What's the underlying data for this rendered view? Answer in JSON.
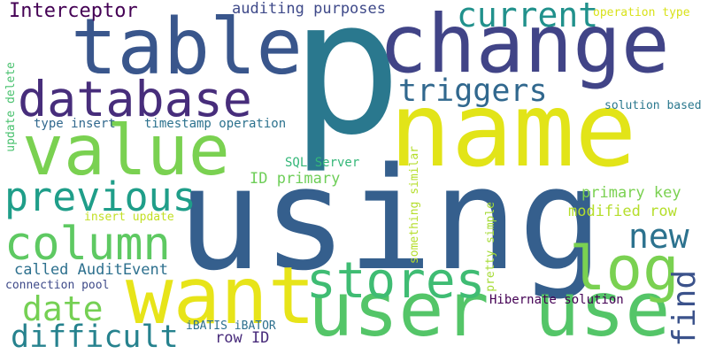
{
  "words": [
    {
      "text": "p",
      "color": "#2a788e"
    },
    {
      "text": "using",
      "color": "#355f8d"
    },
    {
      "text": "name",
      "color": "#e2e418"
    },
    {
      "text": "change",
      "color": "#414487"
    },
    {
      "text": "table",
      "color": "#39568c"
    },
    {
      "text": "user use",
      "color": "#54c568"
    },
    {
      "text": "want",
      "color": "#e7e419"
    },
    {
      "text": "value",
      "color": "#7ad151"
    },
    {
      "text": "database",
      "color": "#472d7b"
    },
    {
      "text": "stores",
      "color": "#3fbc73"
    },
    {
      "text": "log",
      "color": "#7ad151"
    },
    {
      "text": "column",
      "color": "#5ec962"
    },
    {
      "text": "previous",
      "color": "#1f9e89"
    },
    {
      "text": "triggers",
      "color": "#31688e"
    },
    {
      "text": "current",
      "color": "#21918c"
    },
    {
      "text": "new",
      "color": "#2c728e"
    },
    {
      "text": "difficult",
      "color": "#26828e"
    },
    {
      "text": "date",
      "color": "#75d054"
    },
    {
      "text": "find",
      "color": "#3b528b"
    },
    {
      "text": "Interceptor",
      "color": "#440154"
    },
    {
      "text": "auditing purposes",
      "color": "#3e4989"
    },
    {
      "text": "operation type",
      "color": "#d8e219"
    },
    {
      "text": "solution based",
      "color": "#2a788e"
    },
    {
      "text": "type insert",
      "color": "#31688e"
    },
    {
      "text": "timestamp operation",
      "color": "#2c728e"
    },
    {
      "text": "SQL Server",
      "color": "#35b779"
    },
    {
      "text": "ID primary",
      "color": "#6ece58"
    },
    {
      "text": "primary key",
      "color": "#7ad151"
    },
    {
      "text": "modified row",
      "color": "#b5de2b"
    },
    {
      "text": "insert update",
      "color": "#c2df23"
    },
    {
      "text": "called AuditEvent",
      "color": "#2d708e"
    },
    {
      "text": "connection pool",
      "color": "#3e4a89"
    },
    {
      "text": "Hibernate solution",
      "color": "#440154"
    },
    {
      "text": "iBATIS iBATOR",
      "color": "#2d708e"
    },
    {
      "text": "row ID",
      "color": "#472a7a"
    },
    {
      "text": "update delete",
      "color": "#48c16e"
    },
    {
      "text": "something similar",
      "color": "#b5de2b"
    },
    {
      "text": "pretty simple",
      "color": "#a5db36"
    }
  ]
}
